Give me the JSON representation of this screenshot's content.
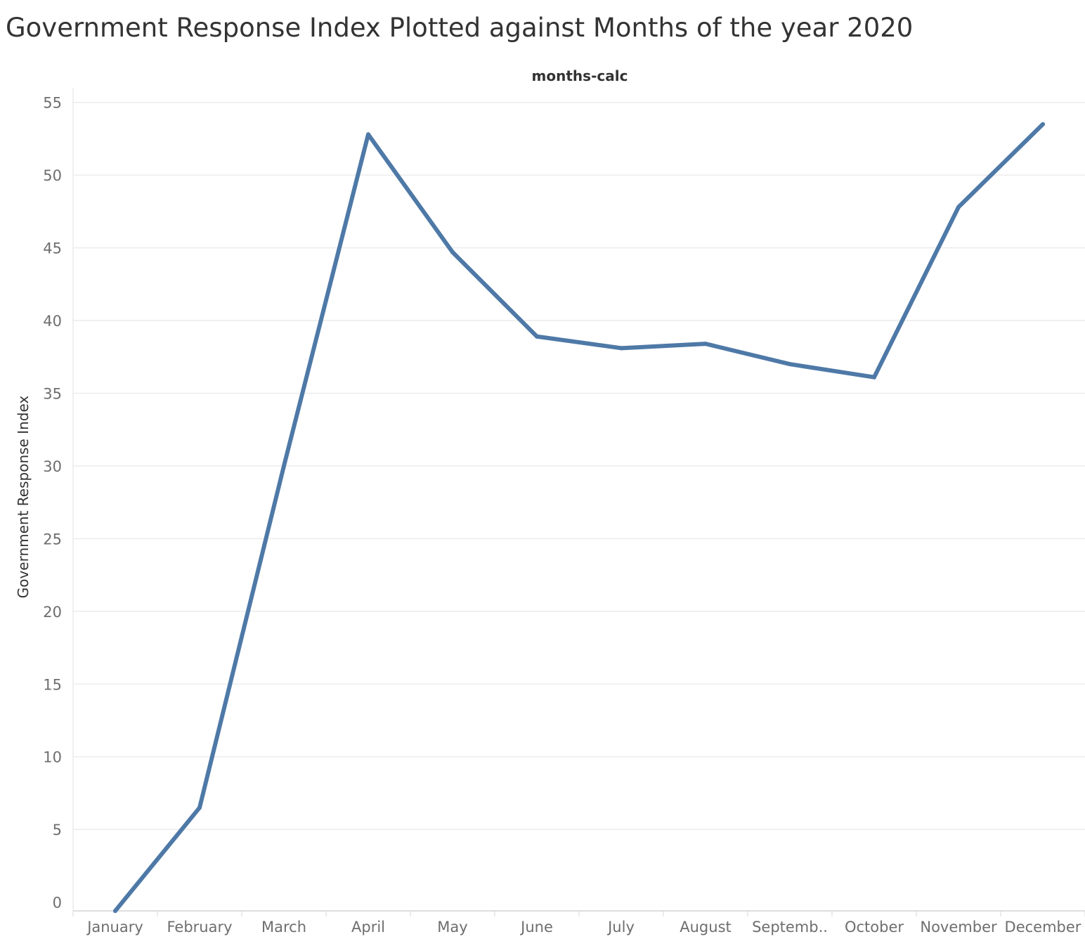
{
  "title": "Government Response Index Plotted against Months of the year 2020",
  "chart_data": {
    "type": "line",
    "title": "Government Response Index Plotted against Months of the year 2020",
    "header": "months-calc",
    "xlabel": "",
    "ylabel": "Government Response Index",
    "categories": [
      "January",
      "February",
      "March",
      "April",
      "May",
      "June",
      "July",
      "August",
      "Septemb..",
      "October",
      "November",
      "December"
    ],
    "series": [
      {
        "color": "#4e79a7",
        "values": [
          -0.6,
          6.5,
          30.0,
          52.8,
          44.7,
          38.9,
          38.1,
          38.4,
          37.0,
          36.1,
          47.8,
          53.5
        ]
      }
    ],
    "ylim": [
      -0.6,
      56
    ],
    "yticks": [
      0,
      5,
      10,
      15,
      20,
      25,
      30,
      35,
      40,
      45,
      50,
      55
    ],
    "grid": true,
    "legend": "none"
  }
}
